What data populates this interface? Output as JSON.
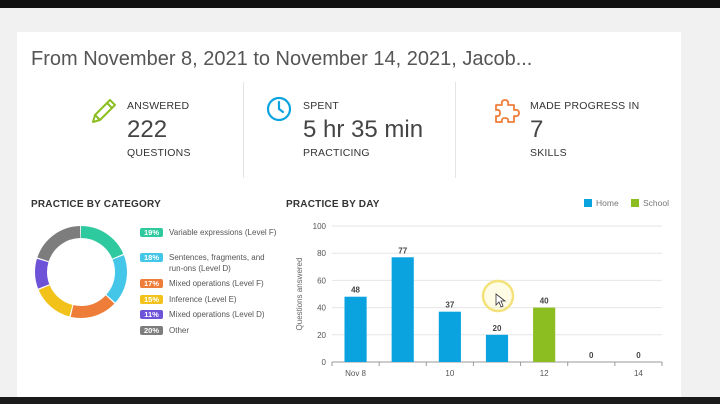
{
  "headline": "From November 8, 2021 to November 14, 2021, Jacob...",
  "stats": [
    {
      "icon": "pencil-icon",
      "top": "ANSWERED",
      "value": "222",
      "bottom": "QUESTIONS"
    },
    {
      "icon": "clock-icon",
      "top": "SPENT",
      "value": "5 hr 35 min",
      "bottom": "PRACTICING"
    },
    {
      "icon": "puzzle-icon",
      "top": "MADE PROGRESS IN",
      "value": "7",
      "bottom": "SKILLS"
    }
  ],
  "category_title": "PRACTICE BY CATEGORY",
  "categories": [
    {
      "pct": "19%",
      "label": "Variable expressions (Level F)",
      "color": "#2ec99e"
    },
    {
      "pct": "18%",
      "label": "Sentences, fragments, and run-ons (Level D)",
      "color": "#43c6e8"
    },
    {
      "pct": "17%",
      "label": "Mixed operations (Level F)",
      "color": "#ef7d3a"
    },
    {
      "pct": "15%",
      "label": "Inference (Level E)",
      "color": "#f2c21b"
    },
    {
      "pct": "11%",
      "label": "Mixed operations (Level D)",
      "color": "#6e52d8"
    },
    {
      "pct": "20%",
      "label": "Other",
      "color": "#7d7d7d"
    }
  ],
  "day_title": "PRACTICE BY DAY",
  "legend": [
    {
      "label": "Home",
      "color": "#0aa3e0"
    },
    {
      "label": "School",
      "color": "#8cbe22"
    }
  ],
  "chart_data": {
    "type": "bar",
    "ylabel": "Questions answered",
    "ylim": [
      0,
      100
    ],
    "yticks": [
      0,
      20,
      40,
      60,
      80,
      100
    ],
    "categories": [
      "Nov 8",
      "",
      "10",
      "",
      "12",
      "",
      "14"
    ],
    "values": [
      48,
      77,
      37,
      20,
      40,
      0,
      0
    ],
    "bar_series": [
      "Home",
      "Home",
      "Home",
      "Home",
      "School",
      "Home",
      "Home"
    ]
  }
}
